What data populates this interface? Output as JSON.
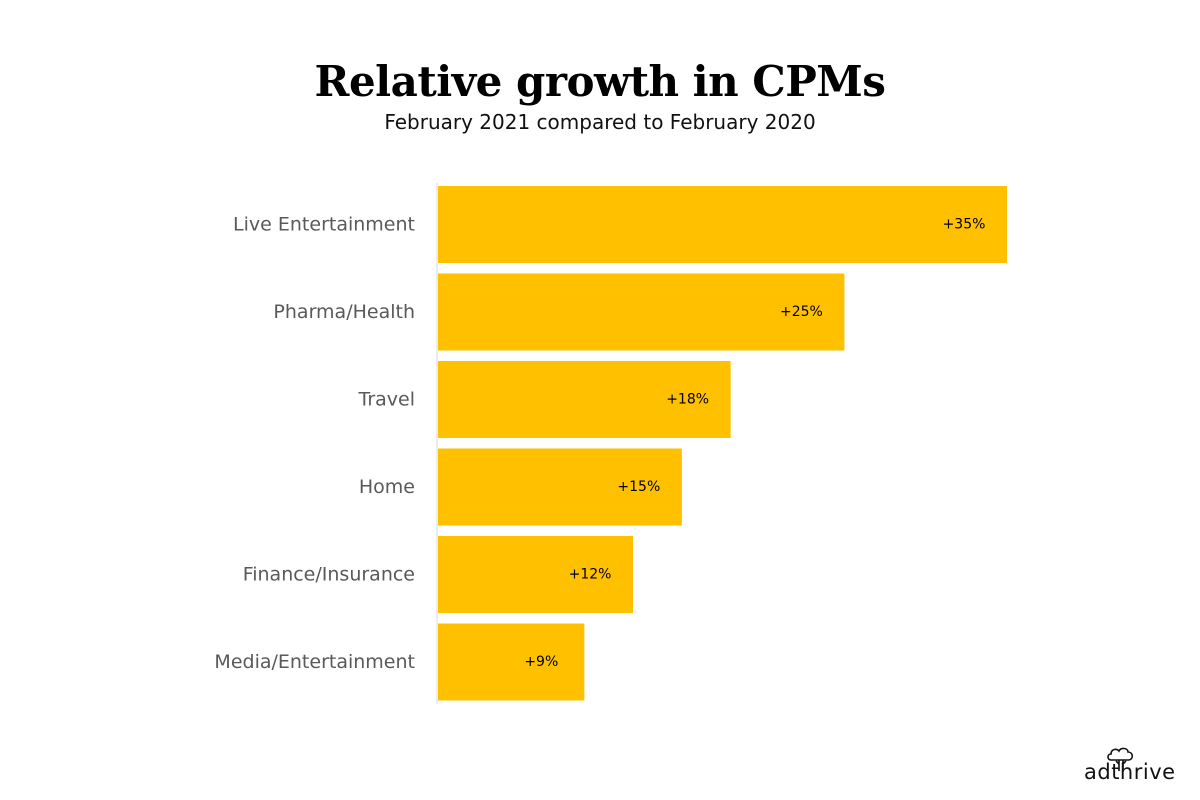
{
  "colors": {
    "bar": "#FFC000",
    "axis": "#d9d9d9",
    "category_label": "#595959",
    "value_label": "#000000"
  },
  "chart_data": {
    "type": "bar",
    "orientation": "horizontal",
    "title": "Relative growth in CPMs",
    "subtitle": "February 2021 compared to February 2020",
    "categories": [
      "Live Entertainment",
      "Pharma/Health",
      "Travel",
      "Home",
      "Finance/Insurance",
      "Media/Entertainment"
    ],
    "values": [
      35,
      25,
      18,
      15,
      12,
      9
    ],
    "value_labels": [
      "+35%",
      "+25%",
      "+18%",
      "+15%",
      "+12%",
      "+9%"
    ],
    "unit": "%",
    "xlabel": "",
    "ylabel": "",
    "xlim": [
      0,
      35
    ],
    "grid": false,
    "legend": "none"
  },
  "branding": {
    "logo_text": "adthrive",
    "logo_icon": "tree-icon"
  }
}
